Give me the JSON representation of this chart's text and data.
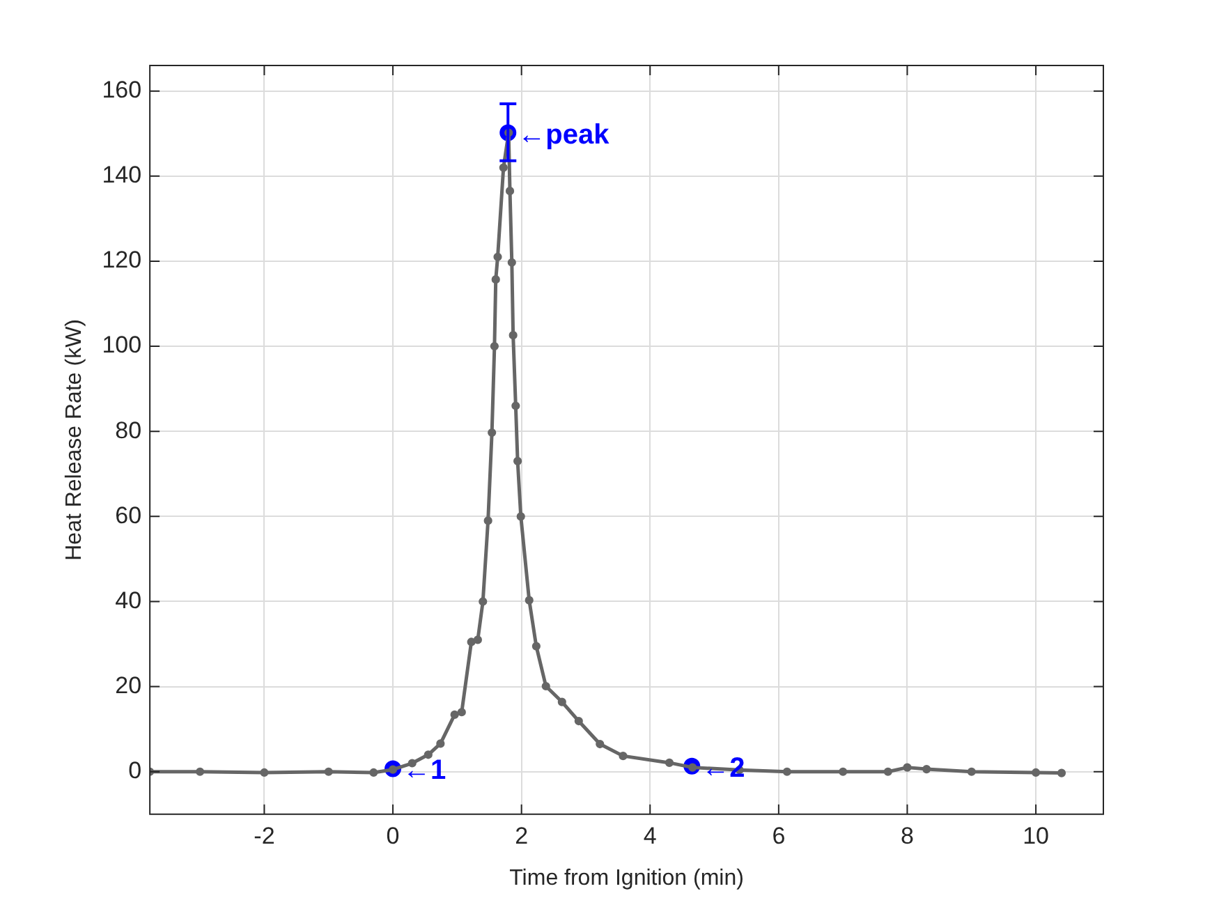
{
  "chart_data": {
    "type": "line",
    "xlabel": "Time from Ignition (min)",
    "ylabel": "Heat Release Rate (kW)",
    "xlim": [
      -3.78,
      11.05
    ],
    "ylim": [
      -10,
      166
    ],
    "xticks": [
      -2,
      0,
      2,
      4,
      6,
      8,
      10
    ],
    "yticks": [
      0,
      20,
      40,
      60,
      80,
      100,
      120,
      140,
      160
    ],
    "grid": true,
    "legend": false,
    "series": [
      {
        "color": "#666666",
        "marker": "circle",
        "x": [
          -3.78,
          -3,
          -2,
          -1,
          -0.3,
          0,
          0.3,
          0.55,
          0.74,
          0.96,
          1.07,
          1.22,
          1.32,
          1.4,
          1.48,
          1.54,
          1.58,
          1.6,
          1.63,
          1.72,
          1.8,
          1.82,
          1.85,
          1.87,
          1.91,
          1.94,
          1.99,
          2.12,
          2.23,
          2.38,
          2.63,
          2.89,
          3.22,
          3.58,
          4.3,
          4.66,
          5.39,
          6.13,
          7,
          7.7,
          8,
          8.3,
          9,
          10,
          10.4
        ],
        "values": [
          0,
          0,
          -0.2,
          0,
          -0.2,
          0.5,
          2,
          4,
          6.6,
          13.4,
          14,
          30.5,
          31,
          40,
          59,
          79.7,
          100,
          115.7,
          121,
          142,
          150.2,
          136.5,
          119.7,
          102.6,
          86,
          73,
          60,
          40.3,
          29.5,
          20.1,
          16.4,
          11.9,
          6.5,
          3.7,
          2.1,
          1,
          0.4,
          0,
          0,
          0,
          1,
          0.6,
          0,
          -0.2,
          -0.3
        ]
      },
      {
        "type": "scatter",
        "color": "#0000ff",
        "marker": "circle",
        "x": [
          0,
          1.79,
          4.65
        ],
        "values": [
          0.7,
          150.2,
          1.3
        ],
        "errors": [
          null,
          [
            143.6,
            157
          ],
          null
        ]
      }
    ],
    "annotations": [
      {
        "text": "←1",
        "x": 0,
        "y": 0.7
      },
      {
        "text": "←peak",
        "x": 1.79,
        "y": 150.2
      },
      {
        "text": "←2",
        "x": 4.65,
        "y": 1.3
      }
    ]
  }
}
